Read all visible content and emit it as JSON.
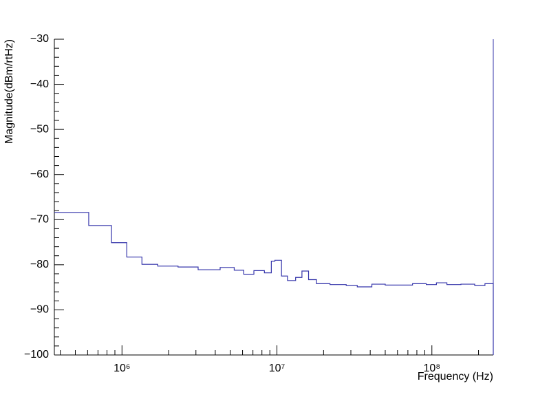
{
  "chart_data": {
    "type": "line",
    "step": true,
    "log_x": true,
    "color": "#3333aa",
    "x_label": "Frequency (Hz)",
    "y_label": "Magnitude(dBm/rtHz)",
    "xlim": [
      366000,
      249000000
    ],
    "ylim": [
      -100,
      -30
    ],
    "xticks": [
      {
        "value": 1000000,
        "label": "10⁶"
      },
      {
        "value": 10000000,
        "label": "10⁷"
      },
      {
        "value": 100000000,
        "label": "10⁸"
      }
    ],
    "yticks": [
      {
        "value": -100,
        "label": "−100"
      },
      {
        "value": -90,
        "label": "−90"
      },
      {
        "value": -80,
        "label": "−80"
      },
      {
        "value": -70,
        "label": "−70"
      },
      {
        "value": -60,
        "label": "−60"
      },
      {
        "value": -50,
        "label": "−50"
      },
      {
        "value": -40,
        "label": "−40"
      },
      {
        "value": -30,
        "label": "−30"
      }
    ],
    "x": [
      366000,
      610000,
      855000,
      1074000,
      1345000,
      1700000,
      2300000,
      3100000,
      4300000,
      5300000,
      6100000,
      7100000,
      8300000,
      9200000,
      9700000,
      10700000,
      11700000,
      13200000,
      14500000,
      16000000,
      18000000,
      22000000,
      28000000,
      33000000,
      41000000,
      50000000,
      61000000,
      75000000,
      92000000,
      107000000,
      125000000,
      154000000,
      189000000,
      220000000
    ],
    "values": [
      -68.4,
      -71.3,
      -75.1,
      -78.3,
      -79.9,
      -80.3,
      -80.5,
      -81.1,
      -80.6,
      -81.2,
      -82.1,
      -81.3,
      -81.8,
      -79.2,
      -79.0,
      -82.5,
      -83.5,
      -82.8,
      -81.4,
      -83.3,
      -84.2,
      -84.4,
      -84.6,
      -84.9,
      -84.3,
      -84.5,
      -84.5,
      -84.2,
      -84.4,
      -84.0,
      -84.4,
      -84.3,
      -84.6,
      -84.2
    ]
  }
}
